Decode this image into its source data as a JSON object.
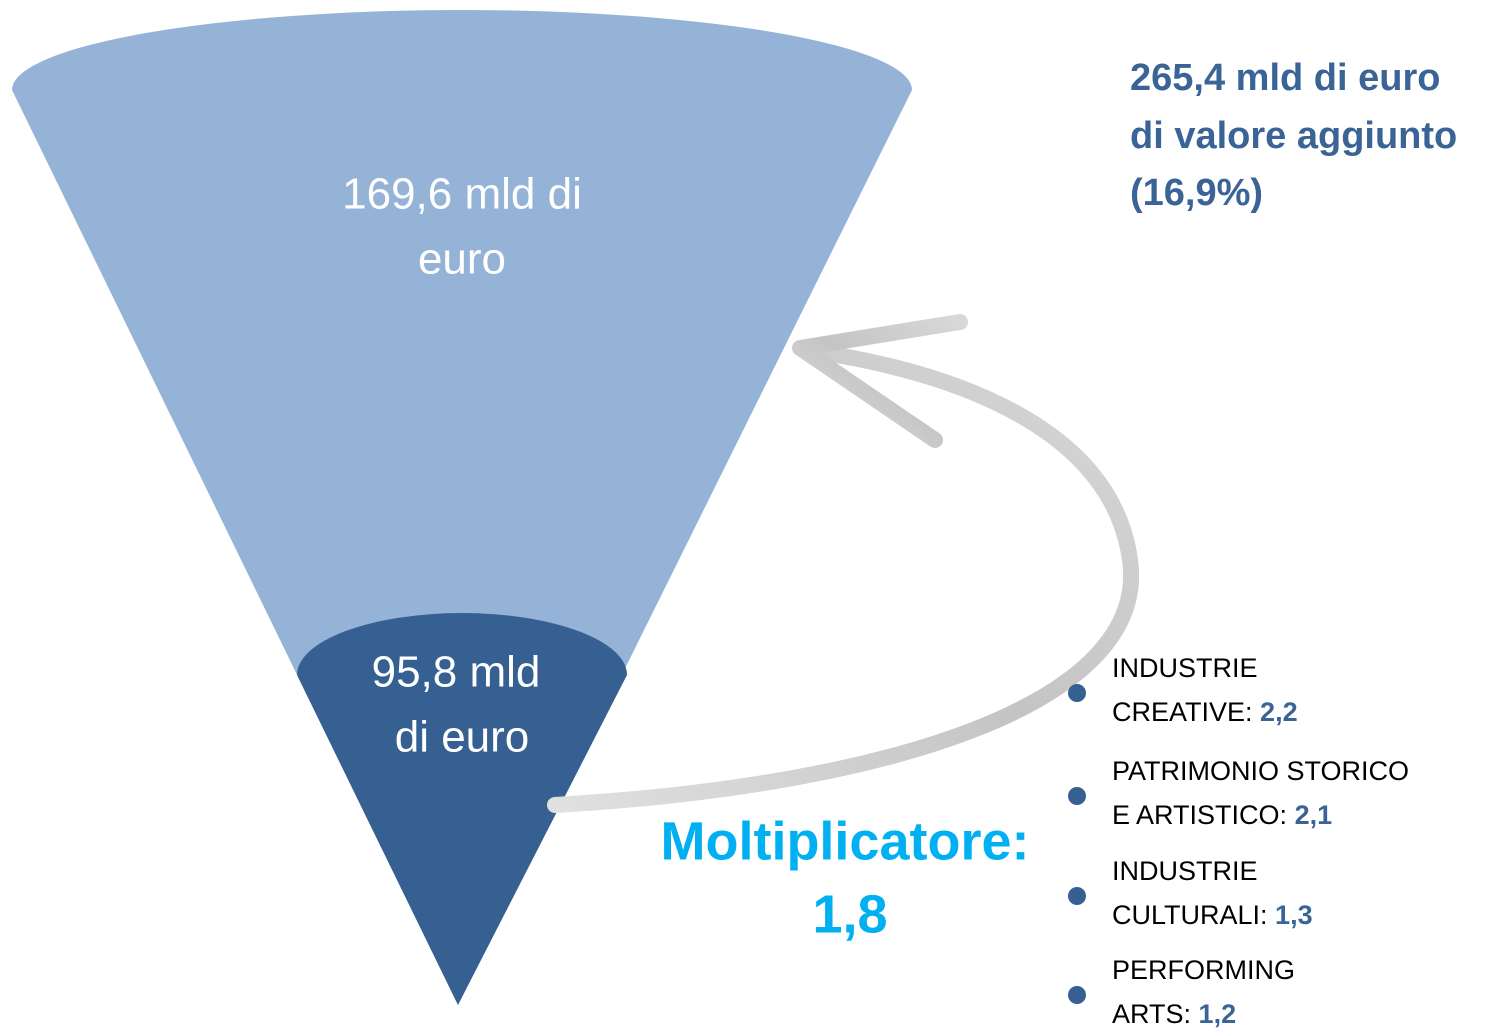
{
  "cone": {
    "outer_label": [
      "169,6 mld di",
      "euro"
    ],
    "inner_label": [
      "95,8 mld",
      "di euro"
    ]
  },
  "total": [
    "265,4 mld di euro",
    "di valore aggiunto",
    "(16,9%)"
  ],
  "multiplier": {
    "label": "Moltiplicatore:",
    "value": "1,8"
  },
  "sectors": [
    {
      "lines": [
        "INDUSTRIE",
        "CREATIVE:"
      ],
      "value": "2,2"
    },
    {
      "lines": [
        "PATRIMONIO STORICO",
        "E ARTISTICO:"
      ],
      "value": "2,1"
    },
    {
      "lines": [
        "INDUSTRIE",
        "CULTURALI:"
      ],
      "value": "1,3"
    },
    {
      "lines": [
        "PERFORMING",
        "ARTS:"
      ],
      "value": "1,2"
    }
  ]
}
